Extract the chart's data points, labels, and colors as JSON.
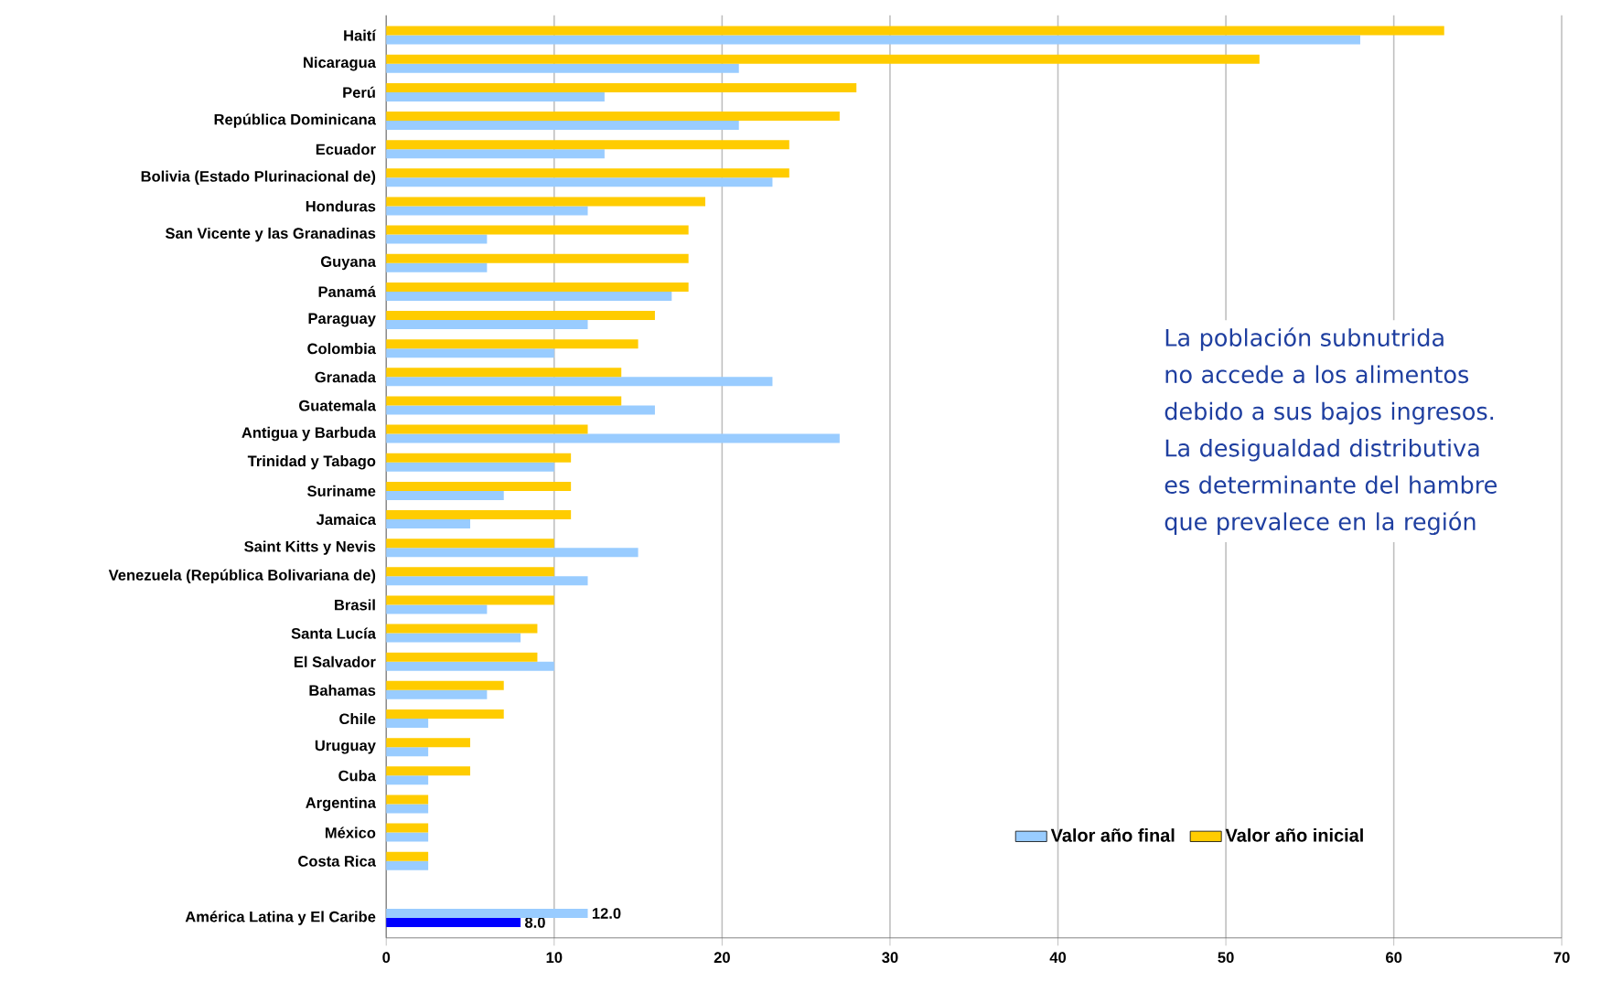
{
  "chart_data": {
    "type": "bar",
    "orientation": "horizontal",
    "categories": [
      "Haití",
      "Nicaragua",
      "Perú",
      "República Dominicana",
      "Ecuador",
      "Bolivia (Estado Plurinacional de)",
      "Honduras",
      "San Vicente y las Granadinas",
      "Guyana",
      "Panamá",
      "Paraguay",
      "Colombia",
      "Granada",
      "Guatemala",
      "Antigua y Barbuda",
      "Trinidad y Tabago",
      "Suriname",
      "Jamaica",
      "Saint Kitts y Nevis",
      "Venezuela (República Bolivariana de)",
      "Brasil",
      "Santa Lucía",
      "El Salvador",
      "Bahamas",
      "Chile",
      "Uruguay",
      "Cuba",
      "Argentina",
      "México",
      "Costa Rica",
      null,
      "América Latina y El Caribe"
    ],
    "series": [
      {
        "name": "Valor año final",
        "color": "#99ccff",
        "colors": [
          "#99ccff",
          "#99ccff",
          "#99ccff",
          "#99ccff",
          "#99ccff",
          "#99ccff",
          "#99ccff",
          "#99ccff",
          "#99ccff",
          "#99ccff",
          "#99ccff",
          "#99ccff",
          "#99ccff",
          "#99ccff",
          "#99ccff",
          "#99ccff",
          "#99ccff",
          "#99ccff",
          "#99ccff",
          "#99ccff",
          "#99ccff",
          "#99ccff",
          "#99ccff",
          "#99ccff",
          "#99ccff",
          "#99ccff",
          "#99ccff",
          "#99ccff",
          "#99ccff",
          "#99ccff",
          "#99ccff",
          "#0000ff"
        ],
        "values": [
          58,
          21,
          13,
          21,
          13,
          23,
          12,
          6,
          6,
          17,
          12,
          10,
          23,
          16,
          27,
          10,
          7,
          5,
          15,
          12,
          6,
          8,
          10,
          6,
          2.5,
          2.5,
          2.5,
          2.5,
          2.5,
          2.5,
          null,
          8.0
        ],
        "value_labels": [
          null,
          null,
          null,
          null,
          null,
          null,
          null,
          null,
          null,
          null,
          null,
          null,
          null,
          null,
          null,
          null,
          null,
          null,
          null,
          null,
          null,
          null,
          null,
          null,
          null,
          null,
          null,
          null,
          null,
          null,
          null,
          "8.0"
        ]
      },
      {
        "name": "Valor año inicial",
        "color": "#ffcc00",
        "colors": [
          "#ffcc00",
          "#ffcc00",
          "#ffcc00",
          "#ffcc00",
          "#ffcc00",
          "#ffcc00",
          "#ffcc00",
          "#ffcc00",
          "#ffcc00",
          "#ffcc00",
          "#ffcc00",
          "#ffcc00",
          "#ffcc00",
          "#ffcc00",
          "#ffcc00",
          "#ffcc00",
          "#ffcc00",
          "#ffcc00",
          "#ffcc00",
          "#ffcc00",
          "#ffcc00",
          "#ffcc00",
          "#ffcc00",
          "#ffcc00",
          "#ffcc00",
          "#ffcc00",
          "#ffcc00",
          "#ffcc00",
          "#ffcc00",
          "#ffcc00",
          "#ffcc00",
          "#99ccff"
        ],
        "values": [
          63,
          52,
          28,
          27,
          24,
          24,
          19,
          18,
          18,
          18,
          16,
          15,
          14,
          14,
          12,
          11,
          11,
          11,
          10,
          10,
          10,
          9,
          9,
          7,
          7,
          5,
          5,
          2.5,
          2.5,
          2.5,
          null,
          12.0
        ],
        "value_labels": [
          null,
          null,
          null,
          null,
          null,
          null,
          null,
          null,
          null,
          null,
          null,
          null,
          null,
          null,
          null,
          null,
          null,
          null,
          null,
          null,
          null,
          null,
          null,
          null,
          null,
          null,
          null,
          null,
          null,
          null,
          null,
          "12.0"
        ]
      }
    ],
    "xlim": [
      0,
      70
    ],
    "xticks": [
      0,
      10,
      20,
      30,
      40,
      50,
      60,
      70
    ],
    "grid": "x",
    "legend": "bottom right",
    "annotations": [
      "La población subnutrida no accede a los alimentos debido a sus bajos ingresos. La desigualdad distributiva es determinante del hambre que prevalece en la región"
    ]
  }
}
